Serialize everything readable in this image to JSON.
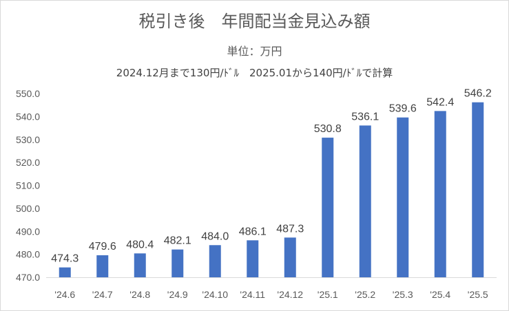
{
  "chart_data": {
    "type": "bar",
    "title": "税引き後　年間配当金見込み額",
    "subtitle": "単位：万円",
    "note": "2024.12月まで130円/ﾄﾞﾙ　2025.01から140円/ﾄﾞﾙで計算",
    "categories": [
      "'24.6",
      "'24.7",
      "'24.8",
      "'24.9",
      "'24.10",
      "'24.11",
      "'24.12",
      "'25.1",
      "'25.2",
      "'25.3",
      "'25.4",
      "'25.5"
    ],
    "values": [
      474.3,
      479.6,
      480.4,
      482.1,
      484.0,
      486.1,
      487.3,
      530.8,
      536.1,
      539.6,
      542.4,
      546.2
    ],
    "ylim": [
      470,
      550
    ],
    "yticks": [
      "470.0",
      "480.0",
      "490.0",
      "500.0",
      "510.0",
      "520.0",
      "530.0",
      "540.0",
      "550.0"
    ],
    "bar_color": "#4472c4",
    "grid": false
  }
}
